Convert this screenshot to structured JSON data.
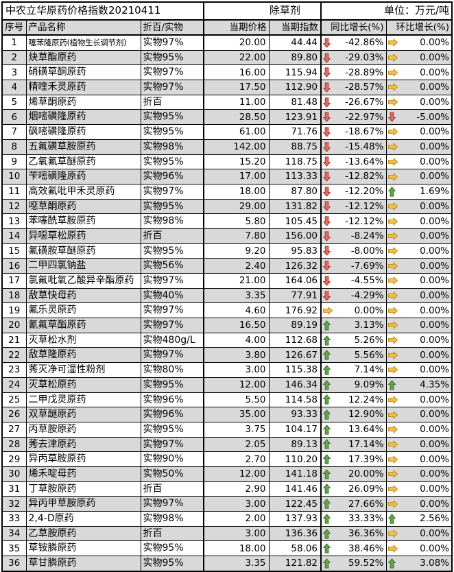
{
  "colors": {
    "up_fill": "#63a24b",
    "up_stroke": "#3a6e2a",
    "down_fill": "#e0695e",
    "down_stroke": "#9e3b33",
    "flat_fill": "#f2bf49",
    "flat_stroke": "#b8860b",
    "row_stripe": "#d9d9d9",
    "border": "#000000"
  },
  "icons": {
    "up": "up-arrow-icon",
    "down": "down-arrow-icon",
    "flat": "right-arrow-icon"
  },
  "chart_data": {
    "type": "table",
    "title": "中农立华原药价格指数20210411",
    "category": "除草剂",
    "unit_label": "单位：万元/吨",
    "columns": [
      "序号",
      "产品名称",
      "折百/实物",
      "当期价格",
      "当期指数",
      "同比增长(%)",
      "环比增长(%)"
    ],
    "rows": [
      {
        "no": "1",
        "name": "噻苯隆原药(植物生长调节剂)",
        "spec": "实物97%",
        "price": "20.00",
        "index": "44.44",
        "yoy_dir": "down",
        "yoy": "-42.86%",
        "mom_dir": "flat",
        "mom": "0.00%"
      },
      {
        "no": "2",
        "name": "炔草酯原药",
        "spec": "实物95%",
        "price": "22.00",
        "index": "89.80",
        "yoy_dir": "down",
        "yoy": "-29.03%",
        "mom_dir": "flat",
        "mom": "0.00%"
      },
      {
        "no": "3",
        "name": "硝磺草酮原药",
        "spec": "实物97%",
        "price": "16.00",
        "index": "115.94",
        "yoy_dir": "down",
        "yoy": "-28.89%",
        "mom_dir": "flat",
        "mom": "0.00%"
      },
      {
        "no": "4",
        "name": "精喹禾灵原药",
        "spec": "实物97%",
        "price": "17.50",
        "index": "112.90",
        "yoy_dir": "down",
        "yoy": "-28.57%",
        "mom_dir": "flat",
        "mom": "0.00%"
      },
      {
        "no": "5",
        "name": "烯草酮原药",
        "spec": "折百",
        "price": "11.00",
        "index": "81.48",
        "yoy_dir": "down",
        "yoy": "-26.67%",
        "mom_dir": "flat",
        "mom": "0.00%"
      },
      {
        "no": "6",
        "name": "烟嘧磺隆原药",
        "spec": "实物95%",
        "price": "28.50",
        "index": "123.91",
        "yoy_dir": "down",
        "yoy": "-22.97%",
        "mom_dir": "down",
        "mom": "-5.00%"
      },
      {
        "no": "7",
        "name": "砜嘧磺隆原药",
        "spec": "实物95%",
        "price": "61.00",
        "index": "71.76",
        "yoy_dir": "down",
        "yoy": "-18.67%",
        "mom_dir": "flat",
        "mom": "0.00%"
      },
      {
        "no": "8",
        "name": "五氟磺草胺原药",
        "spec": "实物98%",
        "price": "142.00",
        "index": "88.75",
        "yoy_dir": "down",
        "yoy": "-15.48%",
        "mom_dir": "flat",
        "mom": "0.00%"
      },
      {
        "no": "9",
        "name": "乙氧氟草醚原药",
        "spec": "实物95%",
        "price": "15.20",
        "index": "118.75",
        "yoy_dir": "down",
        "yoy": "-13.64%",
        "mom_dir": "flat",
        "mom": "0.00%"
      },
      {
        "no": "10",
        "name": "苄嘧磺隆原药",
        "spec": "实物96%",
        "price": "17.00",
        "index": "113.33",
        "yoy_dir": "down",
        "yoy": "-12.82%",
        "mom_dir": "flat",
        "mom": "0.00%"
      },
      {
        "no": "11",
        "name": "高效氟吡甲禾灵原药",
        "spec": "实物97%",
        "price": "18.00",
        "index": "87.80",
        "yoy_dir": "down",
        "yoy": "-12.20%",
        "mom_dir": "up",
        "mom": "1.69%"
      },
      {
        "no": "12",
        "name": "噁草酮原药",
        "spec": "实物95%",
        "price": "29.00",
        "index": "131.82",
        "yoy_dir": "down",
        "yoy": "-12.12%",
        "mom_dir": "flat",
        "mom": "0.00%"
      },
      {
        "no": "13",
        "name": "苯噻酰草胺原药",
        "spec": "实物98%",
        "price": "5.80",
        "index": "105.45",
        "yoy_dir": "down",
        "yoy": "-12.12%",
        "mom_dir": "flat",
        "mom": "0.00%"
      },
      {
        "no": "14",
        "name": "异噁草松原药",
        "spec": "折百",
        "price": "7.80",
        "index": "156.00",
        "yoy_dir": "down",
        "yoy": "-8.24%",
        "mom_dir": "flat",
        "mom": "0.00%"
      },
      {
        "no": "15",
        "name": "氟磺胺草醚原药",
        "spec": "实物95%",
        "price": "9.20",
        "index": "95.83",
        "yoy_dir": "down",
        "yoy": "-8.00%",
        "mom_dir": "flat",
        "mom": "0.00%"
      },
      {
        "no": "16",
        "name": "二甲四氯钠盐",
        "spec": "实物56%",
        "price": "2.40",
        "index": "126.32",
        "yoy_dir": "down",
        "yoy": "-7.69%",
        "mom_dir": "flat",
        "mom": "0.00%"
      },
      {
        "no": "17",
        "name": "氯氟吡氧乙酸异辛酯原药",
        "spec": "实物97%",
        "price": "21.00",
        "index": "164.06",
        "yoy_dir": "down",
        "yoy": "-4.55%",
        "mom_dir": "flat",
        "mom": "0.00%"
      },
      {
        "no": "18",
        "name": "敌草快母药",
        "spec": "实物40%",
        "price": "3.35",
        "index": "77.91",
        "yoy_dir": "down",
        "yoy": "-4.29%",
        "mom_dir": "flat",
        "mom": "0.00%"
      },
      {
        "no": "19",
        "name": "氟乐灵原药",
        "spec": "实物97%",
        "price": "4.60",
        "index": "176.92",
        "yoy_dir": "flat",
        "yoy": "0.00%",
        "mom_dir": "flat",
        "mom": "0.00%"
      },
      {
        "no": "20",
        "name": "氰氟草酯原药",
        "spec": "实物97%",
        "price": "16.50",
        "index": "89.19",
        "yoy_dir": "up",
        "yoy": "3.13%",
        "mom_dir": "flat",
        "mom": "0.00%"
      },
      {
        "no": "21",
        "name": "灭草松水剂",
        "spec": "实物480g/L",
        "price": "4.00",
        "index": "112.68",
        "yoy_dir": "up",
        "yoy": "5.26%",
        "mom_dir": "flat",
        "mom": "0.00%"
      },
      {
        "no": "22",
        "name": "敌草隆原药",
        "spec": "实物97%",
        "price": "3.80",
        "index": "126.67",
        "yoy_dir": "up",
        "yoy": "5.56%",
        "mom_dir": "flat",
        "mom": "0.00%"
      },
      {
        "no": "23",
        "name": "莠灭净可湿性粉剂",
        "spec": "实物80%",
        "price": "3.00",
        "index": "115.38",
        "yoy_dir": "up",
        "yoy": "7.14%",
        "mom_dir": "flat",
        "mom": "0.00%"
      },
      {
        "no": "24",
        "name": "灭草松原药",
        "spec": "实物95%",
        "price": "12.00",
        "index": "146.34",
        "yoy_dir": "up",
        "yoy": "9.09%",
        "mom_dir": "up",
        "mom": "4.35%"
      },
      {
        "no": "25",
        "name": "二甲戊灵原药",
        "spec": "实物96%",
        "price": "5.50",
        "index": "114.58",
        "yoy_dir": "up",
        "yoy": "12.24%",
        "mom_dir": "flat",
        "mom": "0.00%"
      },
      {
        "no": "26",
        "name": "双草醚原药",
        "spec": "实物96%",
        "price": "35.00",
        "index": "93.33",
        "yoy_dir": "up",
        "yoy": "12.90%",
        "mom_dir": "flat",
        "mom": "0.00%"
      },
      {
        "no": "27",
        "name": "丙草胺原药",
        "spec": "实物95%",
        "price": "3.75",
        "index": "104.17",
        "yoy_dir": "up",
        "yoy": "13.64%",
        "mom_dir": "flat",
        "mom": "0.00%"
      },
      {
        "no": "28",
        "name": "莠去津原药",
        "spec": "实物97%",
        "price": "2.05",
        "index": "89.13",
        "yoy_dir": "up",
        "yoy": "17.14%",
        "mom_dir": "flat",
        "mom": "0.00%"
      },
      {
        "no": "29",
        "name": "异丙草胺原药",
        "spec": "实物90%",
        "price": "2.70",
        "index": "110.20",
        "yoy_dir": "up",
        "yoy": "17.39%",
        "mom_dir": "flat",
        "mom": "0.00%"
      },
      {
        "no": "30",
        "name": "烯禾啶母药",
        "spec": "实物50%",
        "price": "12.00",
        "index": "141.18",
        "yoy_dir": "up",
        "yoy": "20.00%",
        "mom_dir": "flat",
        "mom": "0.00%"
      },
      {
        "no": "31",
        "name": "丁草胺原药",
        "spec": "折百",
        "price": "2.90",
        "index": "141.46",
        "yoy_dir": "up",
        "yoy": "26.09%",
        "mom_dir": "flat",
        "mom": "0.00%"
      },
      {
        "no": "32",
        "name": "异丙甲草胺原药",
        "spec": "实物97%",
        "price": "3.00",
        "index": "122.45",
        "yoy_dir": "up",
        "yoy": "27.66%",
        "mom_dir": "flat",
        "mom": "0.00%"
      },
      {
        "no": "33",
        "name": "2,4-D原药",
        "spec": "实物98%",
        "price": "2.00",
        "index": "137.93",
        "yoy_dir": "up",
        "yoy": "33.33%",
        "mom_dir": "up",
        "mom": "2.56%"
      },
      {
        "no": "34",
        "name": "乙草胺原药",
        "spec": "折百",
        "price": "3.00",
        "index": "136.36",
        "yoy_dir": "up",
        "yoy": "36.36%",
        "mom_dir": "flat",
        "mom": "0.00%"
      },
      {
        "no": "35",
        "name": "草铵膦原药",
        "spec": "实物95%",
        "price": "18.00",
        "index": "58.06",
        "yoy_dir": "up",
        "yoy": "38.46%",
        "mom_dir": "flat",
        "mom": "0.00%"
      },
      {
        "no": "36",
        "name": "草甘膦原药",
        "spec": "实物95%",
        "price": "3.35",
        "index": "121.82",
        "yoy_dir": "up",
        "yoy": "59.52%",
        "mom_dir": "up",
        "mom": "3.08%"
      }
    ]
  }
}
